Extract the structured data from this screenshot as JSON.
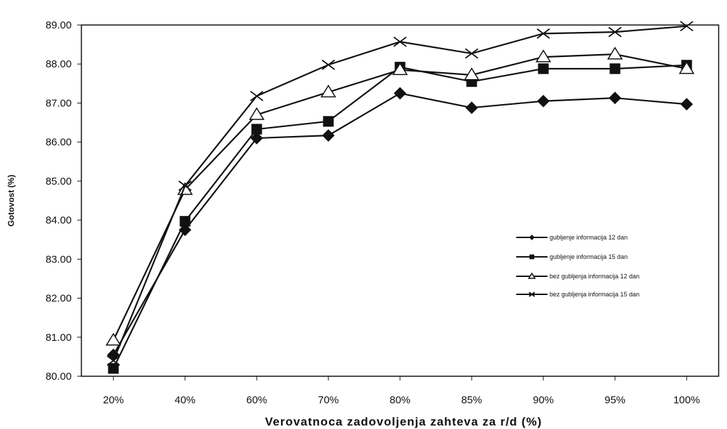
{
  "chart_data": {
    "type": "line",
    "title": "",
    "xlabel": "Verovatnoca zadovoljenja zahteva za r/d (%)",
    "ylabel": "Gotovost (%)",
    "categories": [
      "20%",
      "40%",
      "60%",
      "70%",
      "80%",
      "85%",
      "90%",
      "95%",
      "100%"
    ],
    "ylim": [
      80,
      89
    ],
    "yticks": [
      "80.00",
      "81.00",
      "82.00",
      "83.00",
      "84.00",
      "85.00",
      "86.00",
      "87.00",
      "88.00",
      "89.00"
    ],
    "grid": false,
    "legend_position": "right",
    "series": [
      {
        "name": "gubljenje informacija 12 dan",
        "marker": "diamond",
        "values": [
          80.55,
          83.75,
          86.1,
          86.17,
          87.25,
          86.88,
          87.05,
          87.13,
          86.97
        ]
      },
      {
        "name": "gubljenje informacija 15 dan",
        "marker": "square",
        "values": [
          80.2,
          83.97,
          86.33,
          86.53,
          87.92,
          87.55,
          87.88,
          87.88,
          87.97
        ]
      },
      {
        "name": "bez gubljenja informacija 12 dan",
        "marker": "triangle",
        "values": [
          80.92,
          84.78,
          86.7,
          87.28,
          87.85,
          87.72,
          88.18,
          88.25,
          87.88
        ]
      },
      {
        "name": "bez gubljenja informacija 15 dan",
        "marker": "x",
        "values": [
          80.4,
          84.88,
          87.18,
          87.98,
          88.57,
          88.27,
          88.78,
          88.82,
          88.97
        ]
      }
    ]
  }
}
